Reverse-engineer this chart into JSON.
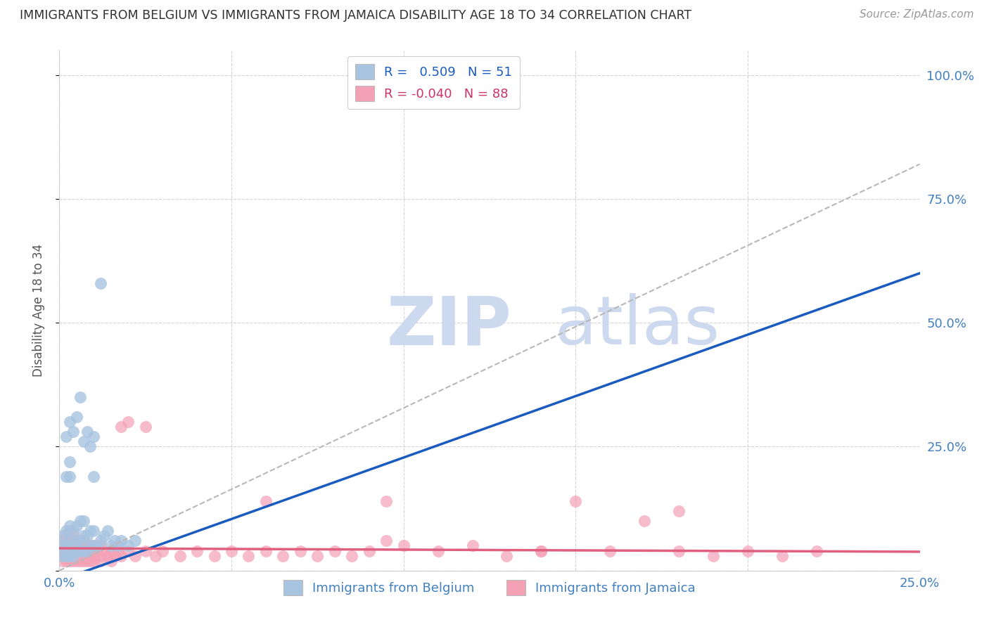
{
  "title": "IMMIGRANTS FROM BELGIUM VS IMMIGRANTS FROM JAMAICA DISABILITY AGE 18 TO 34 CORRELATION CHART",
  "source": "Source: ZipAtlas.com",
  "ylabel_label": "Disability Age 18 to 34",
  "xmin": 0.0,
  "xmax": 0.25,
  "ymin": 0.0,
  "ymax": 1.05,
  "belgium_R": 0.509,
  "belgium_N": 51,
  "jamaica_R": -0.04,
  "jamaica_N": 88,
  "belgium_color": "#a8c4e0",
  "jamaica_color": "#f4a0b5",
  "belgium_line_color": "#1a5bbf",
  "jamaica_line_color": "#e06080",
  "ref_line_color": "#b8b8b8",
  "background_color": "#ffffff",
  "grid_color": "#d0d0d0",
  "title_color": "#303030",
  "axis_label_color": "#4080c0",
  "watermark_color": "#ccd9ee",
  "legend_label_belgium": "Immigrants from Belgium",
  "legend_label_jamaica": "Immigrants from Jamaica",
  "belgium_trend_x0": 0.0,
  "belgium_trend_y0": -0.02,
  "belgium_trend_x1": 0.25,
  "belgium_trend_y1": 0.6,
  "jamaica_trend_x0": 0.0,
  "jamaica_trend_y0": 0.045,
  "jamaica_trend_x1": 0.25,
  "jamaica_trend_y1": 0.038,
  "ref_line_x0": 0.0,
  "ref_line_y0": 0.0,
  "ref_line_x1": 0.25,
  "ref_line_y1": 0.82,
  "belgium_x": [
    0.001,
    0.001,
    0.001,
    0.002,
    0.002,
    0.002,
    0.002,
    0.003,
    0.003,
    0.003,
    0.003,
    0.003,
    0.004,
    0.004,
    0.004,
    0.005,
    0.005,
    0.005,
    0.006,
    0.006,
    0.006,
    0.007,
    0.007,
    0.007,
    0.008,
    0.008,
    0.009,
    0.009,
    0.01,
    0.01,
    0.01,
    0.011,
    0.012,
    0.013,
    0.014,
    0.015,
    0.016,
    0.017,
    0.018,
    0.02,
    0.022,
    0.002,
    0.003,
    0.004,
    0.005,
    0.006,
    0.007,
    0.008,
    0.009,
    0.01,
    0.012
  ],
  "belgium_y": [
    0.03,
    0.05,
    0.07,
    0.03,
    0.05,
    0.08,
    0.19,
    0.03,
    0.06,
    0.09,
    0.19,
    0.22,
    0.03,
    0.05,
    0.08,
    0.04,
    0.06,
    0.09,
    0.04,
    0.06,
    0.1,
    0.04,
    0.07,
    0.1,
    0.04,
    0.07,
    0.05,
    0.08,
    0.05,
    0.08,
    0.19,
    0.05,
    0.06,
    0.07,
    0.08,
    0.05,
    0.06,
    0.05,
    0.06,
    0.05,
    0.06,
    0.27,
    0.3,
    0.28,
    0.31,
    0.35,
    0.26,
    0.28,
    0.25,
    0.27,
    0.58
  ],
  "jamaica_x": [
    0.001,
    0.001,
    0.001,
    0.002,
    0.002,
    0.002,
    0.002,
    0.003,
    0.003,
    0.003,
    0.003,
    0.004,
    0.004,
    0.004,
    0.005,
    0.005,
    0.005,
    0.006,
    0.006,
    0.006,
    0.007,
    0.007,
    0.007,
    0.008,
    0.008,
    0.009,
    0.009,
    0.01,
    0.01,
    0.011,
    0.012,
    0.012,
    0.013,
    0.014,
    0.015,
    0.016,
    0.017,
    0.018,
    0.02,
    0.022,
    0.025,
    0.028,
    0.03,
    0.035,
    0.04,
    0.045,
    0.05,
    0.055,
    0.06,
    0.065,
    0.07,
    0.075,
    0.08,
    0.085,
    0.09,
    0.095,
    0.1,
    0.11,
    0.12,
    0.13,
    0.14,
    0.15,
    0.16,
    0.17,
    0.18,
    0.19,
    0.2,
    0.21,
    0.22,
    0.001,
    0.002,
    0.003,
    0.004,
    0.005,
    0.006,
    0.007,
    0.008,
    0.009,
    0.01,
    0.012,
    0.015,
    0.018,
    0.02,
    0.025,
    0.06,
    0.095,
    0.14,
    0.18
  ],
  "jamaica_y": [
    0.03,
    0.04,
    0.06,
    0.03,
    0.04,
    0.05,
    0.07,
    0.03,
    0.04,
    0.06,
    0.08,
    0.03,
    0.05,
    0.07,
    0.03,
    0.04,
    0.06,
    0.03,
    0.04,
    0.06,
    0.03,
    0.04,
    0.06,
    0.03,
    0.05,
    0.03,
    0.05,
    0.03,
    0.05,
    0.04,
    0.03,
    0.05,
    0.04,
    0.03,
    0.04,
    0.03,
    0.04,
    0.03,
    0.04,
    0.03,
    0.04,
    0.03,
    0.04,
    0.03,
    0.04,
    0.03,
    0.04,
    0.03,
    0.04,
    0.03,
    0.04,
    0.03,
    0.04,
    0.03,
    0.04,
    0.14,
    0.05,
    0.04,
    0.05,
    0.03,
    0.04,
    0.14,
    0.04,
    0.1,
    0.04,
    0.03,
    0.04,
    0.03,
    0.04,
    0.02,
    0.02,
    0.02,
    0.02,
    0.02,
    0.02,
    0.02,
    0.02,
    0.02,
    0.02,
    0.02,
    0.02,
    0.29,
    0.3,
    0.29,
    0.14,
    0.06,
    0.04,
    0.12
  ]
}
